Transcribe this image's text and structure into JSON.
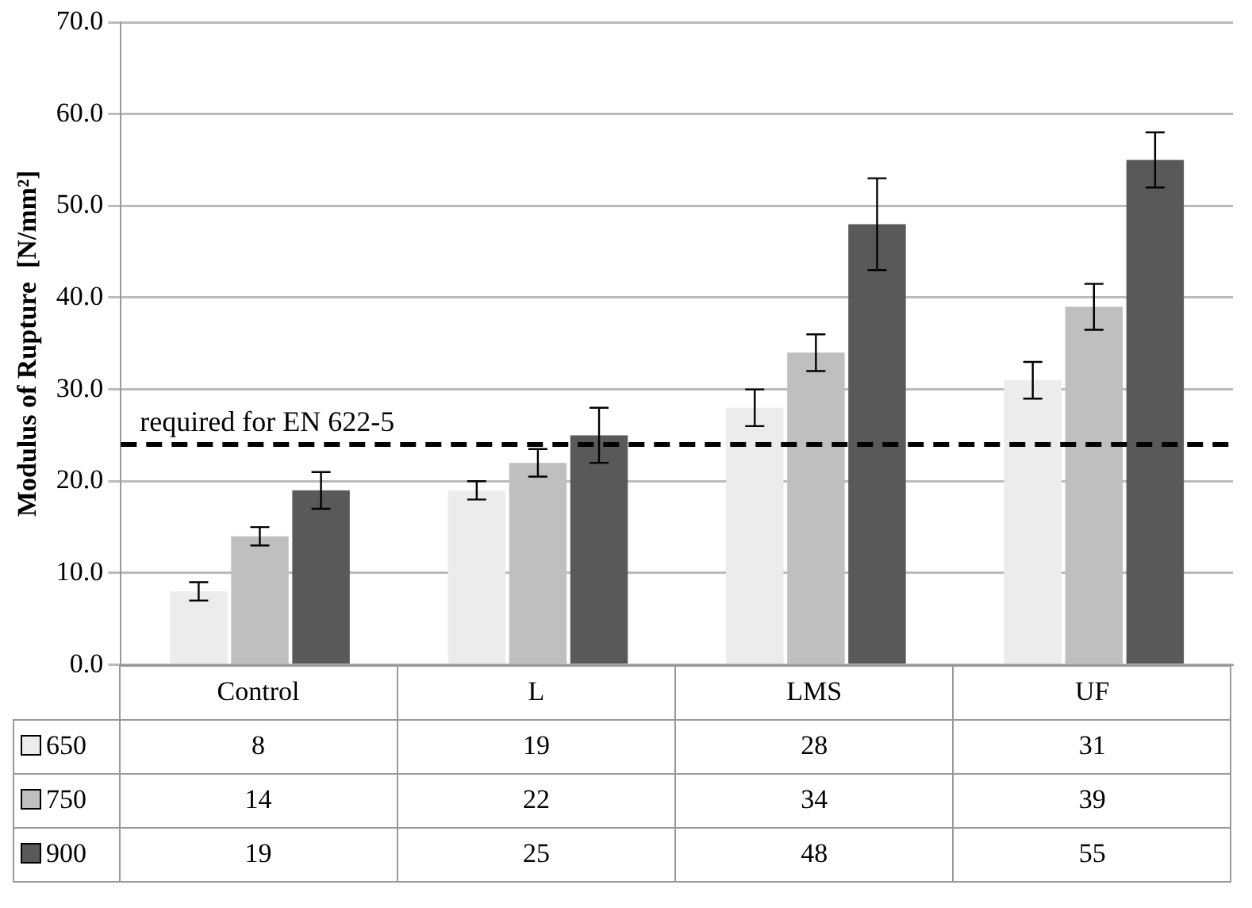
{
  "chart_data": {
    "type": "bar",
    "ylabel": "Modulus of Rupture  [N/mm²]",
    "categories": [
      "Control",
      "L",
      "LMS",
      "UF"
    ],
    "series": [
      {
        "name": "650",
        "color": "#ececec",
        "values": [
          8,
          19,
          28,
          31
        ],
        "errors": [
          1,
          1,
          2,
          2
        ]
      },
      {
        "name": "750",
        "color": "#bfbfbf",
        "values": [
          14,
          22,
          34,
          39
        ],
        "errors": [
          1,
          1.5,
          2,
          2.5
        ]
      },
      {
        "name": "900",
        "color": "#595959",
        "values": [
          19,
          25,
          48,
          55
        ],
        "errors": [
          2,
          3,
          5,
          3
        ]
      }
    ],
    "ylim": [
      0,
      70
    ],
    "yticks": [
      {
        "value": 0,
        "label": "0.0"
      },
      {
        "value": 10,
        "label": "10.0"
      },
      {
        "value": 20,
        "label": "20.0"
      },
      {
        "value": 30,
        "label": "30.0"
      },
      {
        "value": 40,
        "label": "40.0"
      },
      {
        "value": 50,
        "label": "50.0"
      },
      {
        "value": 60,
        "label": "60.0"
      },
      {
        "value": 70,
        "label": "70.0"
      }
    ],
    "ref_lines": [
      {
        "axis": "y",
        "value": 24,
        "label": "required for EN 622-5",
        "color": "#000000",
        "line_style": "dashed"
      }
    ],
    "grid": "y",
    "legend": "bottom",
    "data_labels": true
  }
}
